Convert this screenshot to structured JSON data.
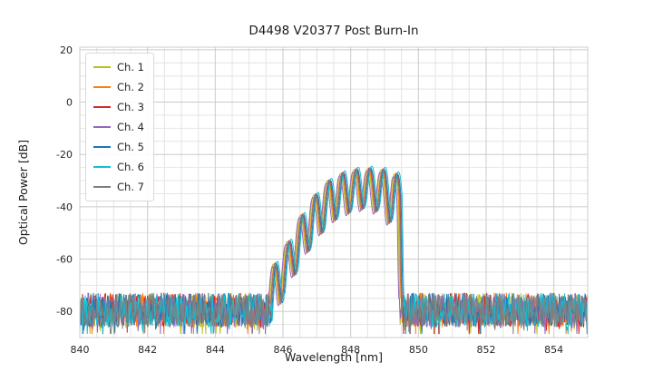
{
  "chart_data": {
    "type": "line",
    "title": "D4498 V20377 Post Burn-In",
    "xlabel": "Wavelength [nm]",
    "ylabel": "Optical Power [dB]",
    "xlim": [
      840,
      855
    ],
    "ylim": [
      -90,
      21
    ],
    "xticks": [
      840,
      842,
      844,
      846,
      848,
      850,
      852,
      854
    ],
    "yticks": [
      20,
      0,
      -20,
      -40,
      -60,
      -80
    ],
    "grid": {
      "major_color": "#cbcbcb",
      "minor_color": "#e4e4e4",
      "border_color": "#cccccc",
      "minor_x_step": 0.5,
      "minor_y_step": 5
    },
    "legend_position": "upper left",
    "noise": {
      "floor_db": -79.5,
      "spread_db": 13,
      "spike_prob": 0.06,
      "step_nm": 0.02
    },
    "signal": {
      "envelope": [
        [
          845.5,
          -79.0
        ],
        [
          845.75,
          -62.0
        ],
        [
          846.0,
          -58.0
        ],
        [
          846.35,
          -48.0
        ],
        [
          846.7,
          -40.0
        ],
        [
          847.1,
          -33.0
        ],
        [
          847.5,
          -28.5
        ],
        [
          847.9,
          -26.5
        ],
        [
          848.3,
          -25.5
        ],
        [
          848.7,
          -25.5
        ],
        [
          849.0,
          -26.0
        ],
        [
          849.3,
          -27.0
        ],
        [
          849.45,
          -29.0
        ],
        [
          849.52,
          -79.0
        ]
      ],
      "ripple_period_nm": 0.4,
      "ripple_phase_nm": 846.55,
      "ripple_exponent": 2.5,
      "ripple_depth": [
        [
          845.5,
          18
        ],
        [
          847.0,
          18
        ],
        [
          848.0,
          16
        ],
        [
          848.6,
          15
        ],
        [
          849.2,
          20
        ],
        [
          849.6,
          18
        ]
      ]
    },
    "series": [
      {
        "name": "Ch. 1",
        "color": "#bcbd22",
        "dx": -0.05,
        "dy": 0.0,
        "seed": 11
      },
      {
        "name": "Ch. 2",
        "color": "#ff7f0e",
        "dx": -0.02,
        "dy": -0.5,
        "seed": 22
      },
      {
        "name": "Ch. 3",
        "color": "#d62728",
        "dx": 0.01,
        "dy": 0.4,
        "seed": 33
      },
      {
        "name": "Ch. 4",
        "color": "#9467bd",
        "dx": -0.08,
        "dy": -1.0,
        "seed": 44
      },
      {
        "name": "Ch. 5",
        "color": "#1f77b4",
        "dx": 0.04,
        "dy": 0.2,
        "seed": 55
      },
      {
        "name": "Ch. 6",
        "color": "#17becf",
        "dx": 0.07,
        "dy": 1.0,
        "seed": 66
      },
      {
        "name": "Ch. 7",
        "color": "#7f7f7f",
        "dx": 0.0,
        "dy": -0.2,
        "seed": 77
      }
    ]
  }
}
